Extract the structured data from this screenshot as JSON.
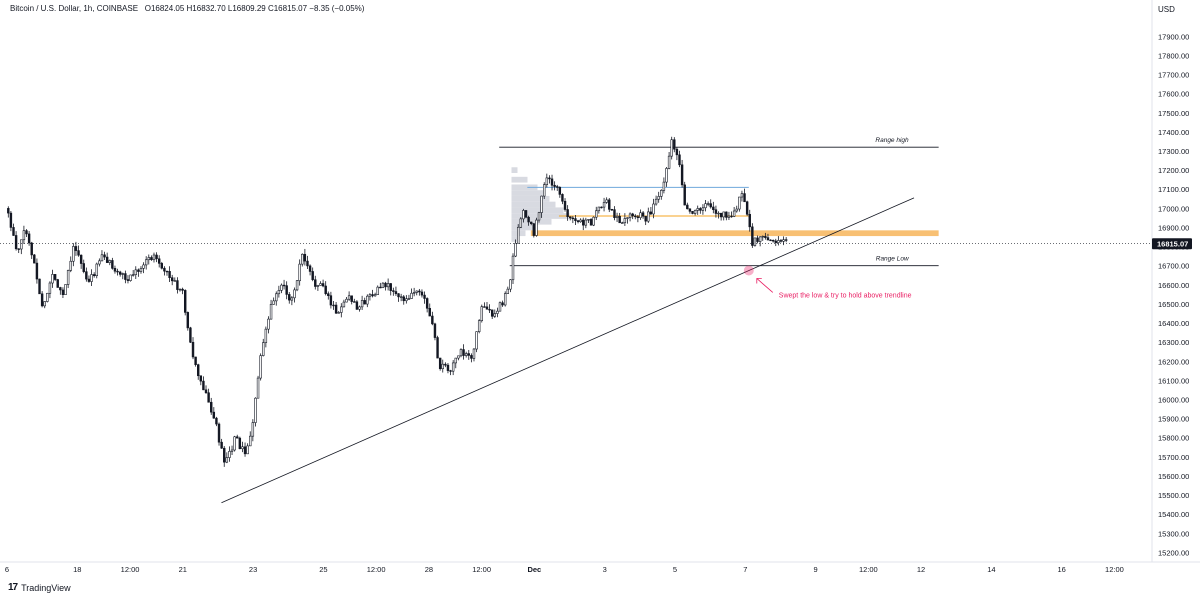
{
  "header": {
    "symbol": "Bitcoin / U.S. Dollar, 1h, COINBASE",
    "ohlc": "O16824.05  H16832.70  L16809.29  C16815.07  −8.35 (−0.05%)"
  },
  "footer": {
    "brand": "TradingView",
    "brand_mark": "17"
  },
  "colors": {
    "candle": "#131722",
    "axis_text": "#131722",
    "grid": "#e0e3eb",
    "range_line": "#131722",
    "value_area_line": "#6fa8dc",
    "poc_line": "#f5a623",
    "demand_zone": "#f7b55a",
    "profile_fill": "#d1d4dc",
    "annotation": "#e91e63",
    "trendline": "#131722",
    "price_tag_bg": "#131722"
  },
  "chart_data": {
    "type": "candlestick",
    "title": "Bitcoin / U.S. Dollar, 1h, COINBASE",
    "currency_label": "USD",
    "last_price": "16815.07",
    "ylim": [
      15150,
      18090
    ],
    "y_ticks": [
      17900,
      17800,
      17700,
      17600,
      17500,
      17400,
      17300,
      17200,
      17100,
      17000,
      16900,
      16800,
      16700,
      16600,
      16500,
      16400,
      16300,
      16200,
      16100,
      16000,
      15900,
      15800,
      15700,
      15600,
      15500,
      15400,
      15300,
      15200
    ],
    "y_tick_labels": [
      "17900.00",
      "17800.00",
      "17700.00",
      "17600.00",
      "17500.00",
      "17400.00",
      "17300.00",
      "17200.00",
      "17100.00",
      "17000.00",
      "16900.00",
      "16800.00",
      "16700.00",
      "16600.00",
      "16500.00",
      "16400.00",
      "16300.00",
      "16200.00",
      "16100.00",
      "16000.00",
      "15900.00",
      "15800.00",
      "15700.00",
      "15600.00",
      "15500.00",
      "15400.00",
      "15300.00",
      "15200.00"
    ],
    "x_domain": [
      0,
      32
    ],
    "x_ticks": [
      {
        "t": 0.0,
        "label": "6"
      },
      {
        "t": 2.0,
        "label": "18"
      },
      {
        "t": 3.5,
        "label": "12:00"
      },
      {
        "t": 5.0,
        "label": "21"
      },
      {
        "t": 7.0,
        "label": "23"
      },
      {
        "t": 9.0,
        "label": "25"
      },
      {
        "t": 10.5,
        "label": "12:00"
      },
      {
        "t": 12.0,
        "label": "28"
      },
      {
        "t": 13.5,
        "label": "12:00"
      },
      {
        "t": 15.0,
        "label": "Dec"
      },
      {
        "t": 17.0,
        "label": "3"
      },
      {
        "t": 19.0,
        "label": "5"
      },
      {
        "t": 21.0,
        "label": "7"
      },
      {
        "t": 23.0,
        "label": "9"
      },
      {
        "t": 24.5,
        "label": "12:00"
      },
      {
        "t": 26.0,
        "label": "12"
      },
      {
        "t": 28.0,
        "label": "14"
      },
      {
        "t": 30.0,
        "label": "16"
      },
      {
        "t": 31.5,
        "label": "12:00"
      }
    ],
    "anchors": [
      [
        0.0,
        17000
      ],
      [
        0.3,
        16750
      ],
      [
        0.5,
        16900
      ],
      [
        0.8,
        16700
      ],
      [
        1.0,
        16480
      ],
      [
        1.3,
        16650
      ],
      [
        1.6,
        16550
      ],
      [
        1.9,
        16820
      ],
      [
        2.3,
        16600
      ],
      [
        2.7,
        16750
      ],
      [
        3.0,
        16700
      ],
      [
        3.4,
        16620
      ],
      [
        3.8,
        16700
      ],
      [
        4.2,
        16760
      ],
      [
        4.6,
        16650
      ],
      [
        5.0,
        16550
      ],
      [
        5.3,
        16200
      ],
      [
        5.6,
        16050
      ],
      [
        5.9,
        15900
      ],
      [
        6.2,
        15650
      ],
      [
        6.5,
        15800
      ],
      [
        6.8,
        15700
      ],
      [
        7.0,
        15900
      ],
      [
        7.2,
        16200
      ],
      [
        7.5,
        16480
      ],
      [
        7.8,
        16600
      ],
      [
        8.1,
        16520
      ],
      [
        8.4,
        16750
      ],
      [
        8.7,
        16620
      ],
      [
        9.0,
        16580
      ],
      [
        9.4,
        16450
      ],
      [
        9.7,
        16550
      ],
      [
        10.0,
        16480
      ],
      [
        10.4,
        16560
      ],
      [
        10.8,
        16600
      ],
      [
        11.2,
        16520
      ],
      [
        11.7,
        16570
      ],
      [
        12.0,
        16480
      ],
      [
        12.3,
        16180
      ],
      [
        12.6,
        16150
      ],
      [
        12.9,
        16250
      ],
      [
        13.2,
        16200
      ],
      [
        13.5,
        16480
      ],
      [
        13.8,
        16450
      ],
      [
        14.1,
        16500
      ],
      [
        14.3,
        16620
      ],
      [
        14.5,
        16860
      ],
      [
        14.7,
        16980
      ],
      [
        15.0,
        16870
      ],
      [
        15.3,
        17150
      ],
      [
        15.6,
        17120
      ],
      [
        15.9,
        16980
      ],
      [
        16.2,
        16940
      ],
      [
        16.6,
        16920
      ],
      [
        17.0,
        17050
      ],
      [
        17.4,
        16930
      ],
      [
        17.8,
        16980
      ],
      [
        18.2,
        16950
      ],
      [
        18.6,
        17080
      ],
      [
        18.9,
        17350
      ],
      [
        19.1,
        17280
      ],
      [
        19.3,
        17000
      ],
      [
        19.6,
        16980
      ],
      [
        19.9,
        17020
      ],
      [
        20.3,
        16960
      ],
      [
        20.7,
        16980
      ],
      [
        20.9,
        17080
      ],
      [
        21.1,
        16960
      ],
      [
        21.2,
        16820
      ],
      [
        21.45,
        16850
      ],
      [
        21.7,
        16830
      ],
      [
        22.0,
        16840
      ],
      [
        22.2,
        16815
      ]
    ],
    "levels": {
      "range_high": {
        "price": 17320,
        "t_start": 14.0,
        "t_end": 26.5,
        "label": "Range high"
      },
      "range_low": {
        "price": 16700,
        "t_start": 14.3,
        "t_end": 26.5,
        "label": "Range Low"
      },
      "value_area_high": {
        "price": 17110,
        "t_start": 14.8,
        "t_end": 21.1
      },
      "poc": {
        "price": 16960,
        "t_start": 15.7,
        "t_end": 21.1
      },
      "demand_zone": {
        "price_low": 16855,
        "price_high": 16885,
        "t_start": 14.9,
        "t_end": 26.5
      }
    },
    "trendline": {
      "p1": [
        6.1,
        15460
      ],
      "p2": [
        25.8,
        17055
      ]
    },
    "annotation": {
      "t": 21.1,
      "price": 16675,
      "text": "Swept the low & try to hold above trendline"
    }
  }
}
